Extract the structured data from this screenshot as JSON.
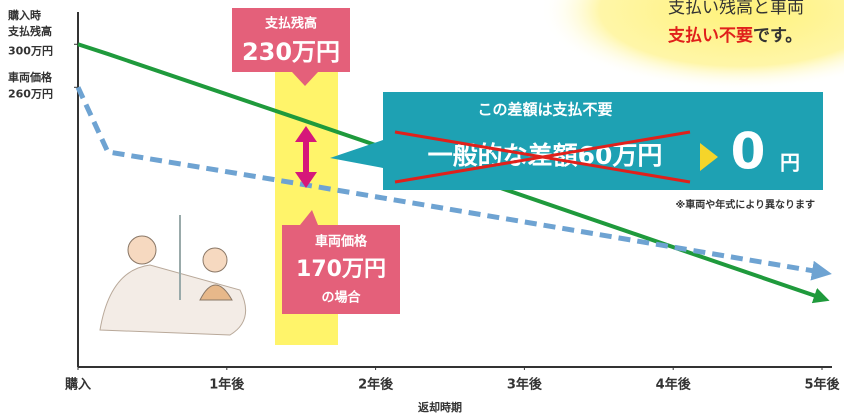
{
  "chart_data": {
    "type": "line",
    "x": [
      0,
      0.2,
      1.5,
      5
    ],
    "series": [
      {
        "color": "#1f9a3c",
        "values": [
          300,
          291,
          230,
          64
        ],
        "dash": false
      },
      {
        "color": "#6ea3d2",
        "values": [
          260,
          200,
          170,
          88
        ],
        "dash": true
      }
    ],
    "xlim": [
      0,
      5
    ],
    "ylim": [
      0,
      330
    ],
    "xticks": [
      {
        "value": 0,
        "label": "購入"
      },
      {
        "value": 1,
        "label": "1年後"
      },
      {
        "value": 2,
        "label": "2年後"
      },
      {
        "value": 3,
        "label": "3年後"
      },
      {
        "value": 4,
        "label": "4年後"
      },
      {
        "value": 5,
        "label": "5年後"
      }
    ],
    "yticks": [
      {
        "value": 300,
        "label": "300万円"
      },
      {
        "value": 260,
        "label": "260万円"
      }
    ],
    "xlabel": "返却時期",
    "annotations": [
      "購入時",
      "支払残高",
      "車両価格"
    ],
    "callout_top": {
      "title": "支払残高",
      "amount": "230万円"
    },
    "callout_bottom": {
      "title": "車両価格",
      "amount": "170万円",
      "suffix": "の場合"
    },
    "difference_box": {
      "title": "この差額は支払不要",
      "struck": "一般的な差額60万円",
      "zero": "0",
      "unit": "円"
    },
    "note": "※車両や年式により異なります",
    "header": {
      "line1": "支払い残高と車両",
      "red": "支払い不要",
      "rest": "です。"
    }
  }
}
